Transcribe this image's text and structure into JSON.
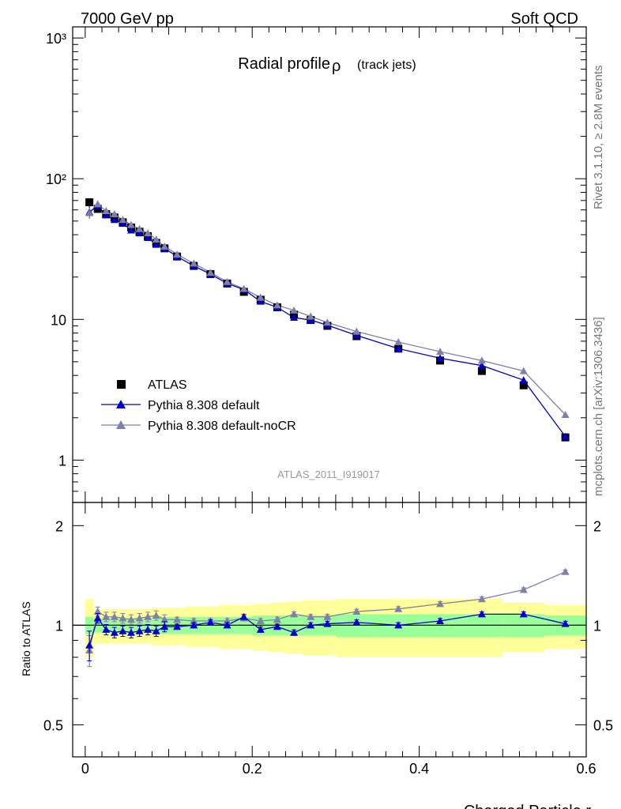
{
  "header": {
    "energy_label": "7000 GeV pp",
    "group_label": "Soft QCD",
    "title_main": "Radial profile ",
    "title_symbol": "ρ",
    "title_sub": "(track jets)",
    "side_rivet": "Rivet 3.1.10, ≥ 2.8M events",
    "side_mcplots": "mcplots.cern.ch [arXiv:1306.3436]",
    "analysis_id": "ATLAS_2011_I919017"
  },
  "colors": {
    "atlas": "#000000",
    "pythia_default": "#0000cc",
    "pythia_nocr": "#7f7faa",
    "band_inner": "#99ff99",
    "band_outer": "#ffff99"
  },
  "chart_data": [
    {
      "type": "scatter",
      "panel": "main",
      "title": "Radial profile ρ (track jets)",
      "xlabel": "",
      "ylabel": "",
      "xlim": [
        -0.015,
        0.6
      ],
      "ylim": [
        0.5,
        1200
      ],
      "yscale": "log",
      "ytick_labels": [
        "1",
        "10",
        "10²",
        "10³"
      ],
      "legend": {
        "placement": "bottom-left",
        "entries": [
          "ATLAS",
          "Pythia 8.308 default",
          "Pythia 8.308 default-noCR"
        ]
      },
      "x": [
        0.005,
        0.015,
        0.025,
        0.035,
        0.045,
        0.055,
        0.065,
        0.075,
        0.085,
        0.095,
        0.11,
        0.13,
        0.15,
        0.17,
        0.19,
        0.21,
        0.23,
        0.25,
        0.27,
        0.29,
        0.325,
        0.375,
        0.425,
        0.475,
        0.525,
        0.575
      ],
      "series": [
        {
          "name": "ATLAS",
          "marker": "square",
          "values": [
            68,
            61,
            56,
            53,
            49,
            45,
            42,
            39,
            35,
            32,
            28,
            24,
            21,
            18,
            15.7,
            13.8,
            12.2,
            10.8,
            9.9,
            9.0,
            7.6,
            6.2,
            5.1,
            4.3,
            3.4,
            1.45
          ]
        },
        {
          "name": "Pythia 8.308 default",
          "marker": "triangle",
          "values": [
            58,
            64,
            55,
            51,
            48,
            43,
            41,
            38,
            34,
            32,
            28,
            24,
            21,
            18,
            16.3,
            13.4,
            12.2,
            10.3,
            9.9,
            9.1,
            7.7,
            6.2,
            5.3,
            4.7,
            3.7,
            1.47
          ]
        },
        {
          "name": "Pythia 8.308 default-noCR",
          "marker": "triangle",
          "values": [
            57,
            66,
            59,
            56,
            51,
            47,
            44,
            41,
            37,
            33,
            29,
            25,
            21.5,
            18.5,
            16.5,
            14.3,
            12.6,
            11.6,
            10.5,
            9.5,
            8.2,
            6.9,
            5.9,
            5.1,
            4.3,
            2.1
          ]
        }
      ]
    },
    {
      "type": "line",
      "panel": "ratio",
      "xlabel": "Charged Particle r",
      "ylabel": "Ratio to ATLAS",
      "xlim": [
        -0.015,
        0.6
      ],
      "ylim": [
        0.4,
        2.35
      ],
      "yscale": "log",
      "yticks": [
        0.5,
        1,
        2
      ],
      "ytick_labels": [
        "0.5",
        "1",
        "2"
      ],
      "xticks": [
        0,
        0.2,
        0.4,
        0.6
      ],
      "xtick_labels": [
        "0",
        "0.2",
        "0.4",
        "0.6"
      ],
      "x": [
        0.005,
        0.015,
        0.025,
        0.035,
        0.045,
        0.055,
        0.065,
        0.075,
        0.085,
        0.095,
        0.11,
        0.13,
        0.15,
        0.17,
        0.19,
        0.21,
        0.23,
        0.25,
        0.27,
        0.29,
        0.325,
        0.375,
        0.425,
        0.475,
        0.525,
        0.575
      ],
      "series": [
        {
          "name": "Pythia 8.308 default",
          "values": [
            0.87,
            1.05,
            0.97,
            0.95,
            0.96,
            0.95,
            0.96,
            0.97,
            0.96,
            0.99,
            0.99,
            1.0,
            1.02,
            1.0,
            1.06,
            0.97,
            0.99,
            0.95,
            1.0,
            1.01,
            1.02,
            1.0,
            1.03,
            1.08,
            1.08,
            1.01
          ]
        },
        {
          "name": "Pythia 8.308 default-noCR",
          "values": [
            0.84,
            1.1,
            1.06,
            1.06,
            1.05,
            1.04,
            1.05,
            1.06,
            1.07,
            1.04,
            1.04,
            1.03,
            1.03,
            1.03,
            1.05,
            1.03,
            1.04,
            1.08,
            1.06,
            1.06,
            1.1,
            1.12,
            1.16,
            1.2,
            1.28,
            1.45
          ]
        }
      ],
      "bands": {
        "x_edges": [
          0,
          0.01,
          0.02,
          0.03,
          0.04,
          0.05,
          0.06,
          0.07,
          0.08,
          0.09,
          0.1,
          0.12,
          0.14,
          0.16,
          0.18,
          0.2,
          0.22,
          0.24,
          0.26,
          0.28,
          0.3,
          0.35,
          0.4,
          0.45,
          0.5,
          0.55,
          0.6
        ],
        "inner": [
          0.06,
          0.05,
          0.05,
          0.05,
          0.05,
          0.05,
          0.05,
          0.05,
          0.06,
          0.06,
          0.06,
          0.06,
          0.06,
          0.06,
          0.06,
          0.07,
          0.07,
          0.07,
          0.07,
          0.07,
          0.08,
          0.08,
          0.08,
          0.08,
          0.08,
          0.07
        ],
        "outer": [
          0.2,
          0.12,
          0.12,
          0.12,
          0.12,
          0.12,
          0.12,
          0.12,
          0.13,
          0.13,
          0.13,
          0.14,
          0.14,
          0.15,
          0.15,
          0.16,
          0.17,
          0.18,
          0.19,
          0.19,
          0.2,
          0.2,
          0.2,
          0.2,
          0.17,
          0.15
        ]
      }
    }
  ]
}
